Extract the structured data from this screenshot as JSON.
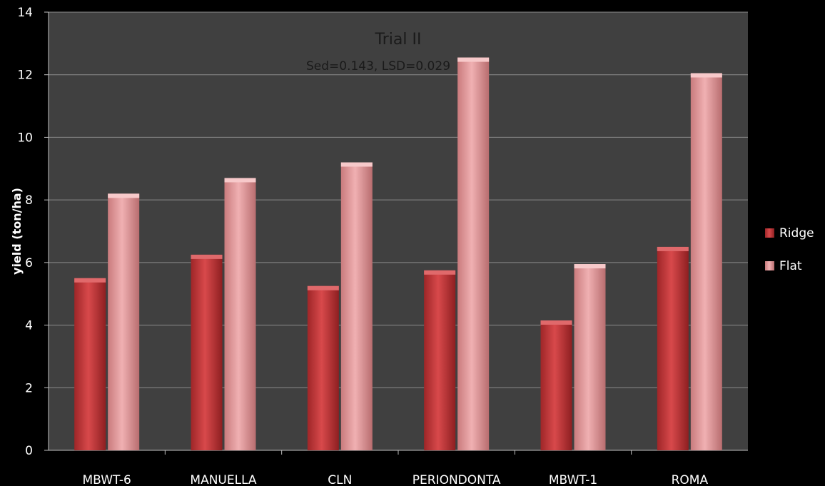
{
  "chart_data": {
    "type": "bar",
    "title": "Trial II",
    "subtitle": "Sed=0.143, LSD=0.029",
    "xlabel": "",
    "ylabel": "yield (ton/ha)",
    "ylim": [
      0,
      14
    ],
    "yticks": [
      0,
      2,
      4,
      6,
      8,
      10,
      12,
      14
    ],
    "grid": true,
    "legend_position": "right",
    "categories": [
      "MBWT-6",
      "MANUELLA",
      "CLN",
      "PERIONDONTA",
      "MBWT-1",
      "ROMA"
    ],
    "series": [
      {
        "name": "Ridge",
        "color": "#c0393b",
        "values": [
          5.5,
          6.25,
          5.25,
          5.75,
          4.15,
          6.5
        ]
      },
      {
        "name": "Flat",
        "color": "#e3999b",
        "values": [
          8.2,
          8.7,
          9.2,
          12.55,
          5.95,
          12.05
        ]
      }
    ]
  },
  "colors": {
    "background": "#000000",
    "plot_area": "#404040",
    "gridline": "#8a8a8a"
  }
}
